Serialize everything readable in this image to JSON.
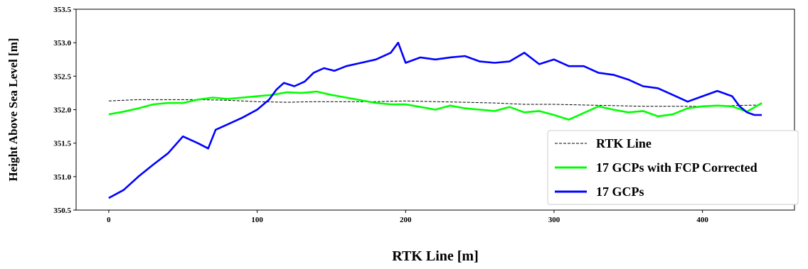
{
  "chart_data": {
    "type": "line",
    "title": "",
    "xlabel": "RTK Line [m]",
    "ylabel": "Height Above Sea  Level [m]",
    "xlim": [
      -22,
      462
    ],
    "ylim": [
      350.5,
      353.5
    ],
    "x_ticks": [
      0,
      100,
      200,
      300,
      400
    ],
    "y_ticks": [
      350.5,
      351.0,
      351.5,
      352.0,
      352.5,
      353.0,
      353.5
    ],
    "x_tick_labels": [
      "0",
      "100",
      "200",
      "300",
      "400"
    ],
    "y_tick_labels": [
      "350.5",
      "351.0",
      "351.5",
      "352.0",
      "352.5",
      "353.0",
      "353.5"
    ],
    "grid": false,
    "legend_position": "lower-right",
    "series": [
      {
        "name": "RTK Line",
        "color": "#000000",
        "style": "dashed",
        "x": [
          0,
          20,
          40,
          60,
          80,
          100,
          120,
          140,
          160,
          180,
          200,
          220,
          240,
          260,
          280,
          300,
          320,
          340,
          360,
          380,
          400,
          420,
          440
        ],
        "y": [
          352.13,
          352.15,
          352.15,
          352.15,
          352.14,
          352.12,
          352.11,
          352.12,
          352.12,
          352.12,
          352.13,
          352.12,
          352.11,
          352.1,
          352.08,
          352.08,
          352.07,
          352.06,
          352.05,
          352.05,
          352.05,
          352.06,
          352.07
        ]
      },
      {
        "name": "17 GCPs with FCP Corrected",
        "color": "#00ff00",
        "style": "solid",
        "x": [
          0,
          10,
          20,
          30,
          40,
          50,
          60,
          70,
          80,
          90,
          100,
          110,
          120,
          130,
          140,
          150,
          160,
          170,
          180,
          190,
          200,
          210,
          220,
          230,
          240,
          250,
          260,
          270,
          280,
          290,
          300,
          310,
          320,
          330,
          340,
          350,
          360,
          370,
          380,
          390,
          400,
          410,
          420,
          430,
          440
        ],
        "y": [
          351.93,
          351.97,
          352.02,
          352.08,
          352.1,
          352.1,
          352.15,
          352.18,
          352.16,
          352.18,
          352.2,
          352.22,
          352.26,
          352.25,
          352.27,
          352.22,
          352.18,
          352.14,
          352.1,
          352.08,
          352.08,
          352.04,
          352.0,
          352.06,
          352.02,
          352.0,
          351.98,
          352.04,
          351.96,
          351.98,
          351.92,
          351.85,
          351.95,
          352.05,
          352.0,
          351.96,
          351.98,
          351.9,
          351.93,
          352.02,
          352.05,
          352.06,
          352.05,
          351.97,
          352.1
        ]
      },
      {
        "name": "17 GCPs",
        "color": "#0000ff",
        "style": "solid",
        "x": [
          0,
          10,
          20,
          30,
          40,
          50,
          60,
          67,
          72,
          80,
          90,
          100,
          108,
          113,
          118,
          125,
          132,
          138,
          145,
          152,
          160,
          170,
          180,
          190,
          195,
          200,
          210,
          220,
          230,
          240,
          250,
          260,
          270,
          280,
          290,
          300,
          310,
          320,
          330,
          340,
          350,
          360,
          370,
          380,
          390,
          400,
          410,
          420,
          425,
          430,
          435,
          440
        ],
        "y": [
          350.68,
          350.8,
          351.0,
          351.18,
          351.35,
          351.6,
          351.5,
          351.42,
          351.7,
          351.78,
          351.88,
          352.0,
          352.15,
          352.3,
          352.4,
          352.35,
          352.42,
          352.55,
          352.62,
          352.58,
          352.65,
          352.7,
          352.75,
          352.85,
          353.0,
          352.7,
          352.78,
          352.75,
          352.78,
          352.8,
          352.72,
          352.7,
          352.72,
          352.85,
          352.68,
          352.75,
          352.65,
          352.65,
          352.55,
          352.52,
          352.45,
          352.35,
          352.32,
          352.22,
          352.12,
          352.2,
          352.28,
          352.2,
          352.05,
          351.96,
          351.92,
          351.92
        ]
      }
    ]
  }
}
